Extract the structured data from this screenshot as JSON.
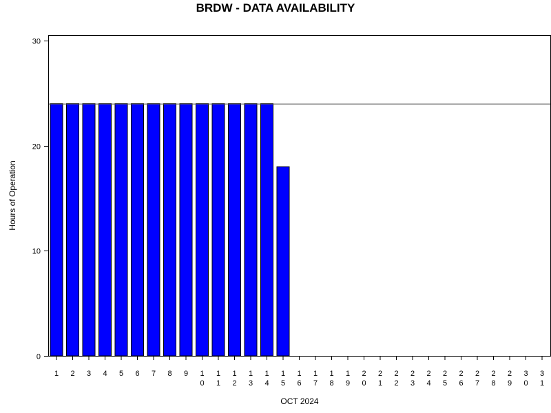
{
  "chart_data": {
    "type": "bar",
    "title": "BRDW - DATA AVAILABILITY",
    "xlabel": "OCT 2024",
    "ylabel": "Hours of Operation",
    "ylim": [
      0,
      30
    ],
    "yticks": [
      0,
      10,
      20,
      30
    ],
    "reference_line": 24,
    "categories": [
      "1",
      "2",
      "3",
      "4",
      "5",
      "6",
      "7",
      "8",
      "9",
      "10",
      "11",
      "12",
      "13",
      "14",
      "15",
      "16",
      "17",
      "18",
      "19",
      "20",
      "21",
      "22",
      "23",
      "24",
      "25",
      "26",
      "27",
      "28",
      "29",
      "30",
      "31"
    ],
    "values": [
      24,
      24,
      24,
      24,
      24,
      24,
      24,
      24,
      24,
      24,
      24,
      24,
      24,
      24,
      18,
      0,
      0,
      0,
      0,
      0,
      0,
      0,
      0,
      0,
      0,
      0,
      0,
      0,
      0,
      0,
      0
    ],
    "bar_color": "#0000ff",
    "grid": false
  }
}
